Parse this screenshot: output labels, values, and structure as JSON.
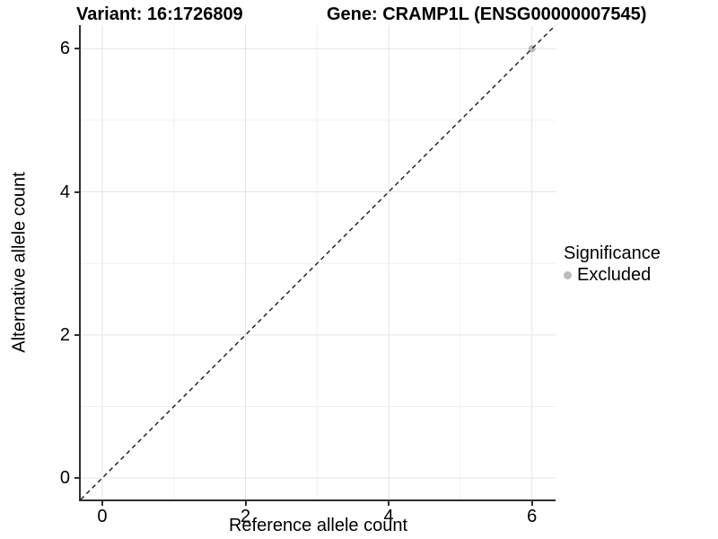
{
  "header": {
    "variant_title": "Variant: 16:1726809",
    "gene_title": "Gene: CRAMP1L (ENSG00000007545)"
  },
  "chart_data": {
    "type": "scatter",
    "xlabel": "Reference allele count",
    "ylabel": "Alternative allele count",
    "xlim": [
      -0.3,
      6.33
    ],
    "ylim": [
      -0.3,
      6.33
    ],
    "x_ticks": [
      0,
      2,
      4,
      6
    ],
    "y_ticks": [
      0,
      2,
      4,
      6
    ],
    "x_minor_ticks": [
      1,
      3,
      5
    ],
    "y_minor_ticks": [
      1,
      3,
      5
    ],
    "grid": "major+minor",
    "series": [
      {
        "name": "Excluded",
        "color": "#bcbcbc",
        "points": [
          [
            6,
            6
          ]
        ]
      }
    ],
    "reference_line": {
      "equation": "y=x",
      "style": "dashed",
      "color": "#1a1a1a"
    },
    "legend": {
      "title": "Significance",
      "position": "right",
      "entries": [
        {
          "label": "Excluded",
          "color": "#bcbcbc"
        }
      ]
    }
  },
  "colors": {
    "major_grid": "#e4e4e4",
    "minor_grid": "#f1f1f1",
    "axis_line": "#2f2f2f",
    "point": "#bcbcbc"
  }
}
